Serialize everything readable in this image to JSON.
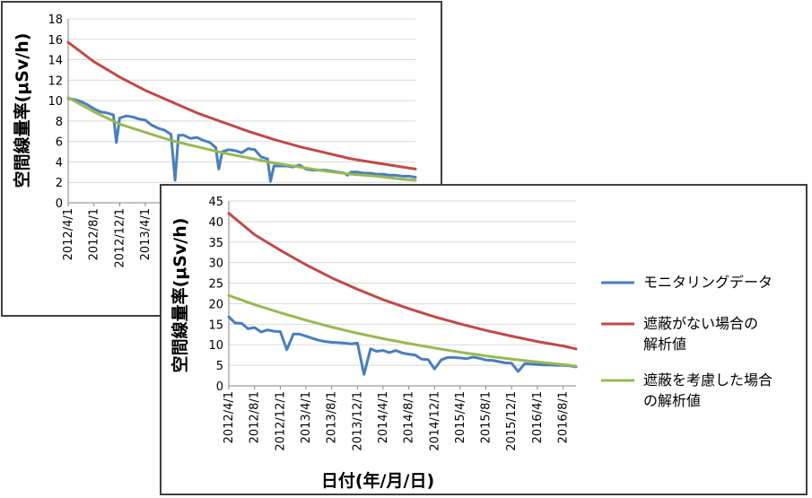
{
  "chart_data": [
    {
      "type": "line",
      "title": "",
      "ylabel": "空間線量率(μSv/h)",
      "xlabel": "",
      "ylim": [
        0,
        18
      ],
      "yticks": [
        0,
        2,
        4,
        6,
        8,
        10,
        12,
        14,
        16,
        18
      ],
      "x_ticks": [
        "2012/4/1",
        "2012/8/1",
        "2012/12/1",
        "2013/4/1"
      ],
      "grid": "horizontal",
      "legend": "none",
      "series": [
        {
          "name": "モニタリングデータ",
          "color": "#4a7ebb",
          "x": [
            "2012/4/1",
            "2012/5/1",
            "2012/6/1",
            "2012/7/1",
            "2012/8/1",
            "2012/9/1",
            "2012/10/1",
            "2012/11/1",
            "2012/11/15",
            "2012/12/1",
            "2013/1/1",
            "2013/2/1",
            "2013/3/1",
            "2013/4/1",
            "2013/5/1",
            "2013/6/1",
            "2013/7/1",
            "2013/8/1",
            "2013/8/20",
            "2013/9/5",
            "2013/10/1",
            "2013/11/1",
            "2013/12/1",
            "2014/1/1",
            "2014/2/1",
            "2014/3/1",
            "2014/3/15",
            "2014/4/1",
            "2014/5/1",
            "2014/6/1",
            "2014/7/1",
            "2014/8/1",
            "2014/9/1",
            "2014/10/1",
            "2014/11/1",
            "2014/11/15",
            "2014/12/1",
            "2015/1/1",
            "2015/2/1",
            "2015/3/1",
            "2015/4/1",
            "2015/5/1",
            "2015/6/1",
            "2015/7/1",
            "2015/8/1",
            "2015/9/1",
            "2015/10/1",
            "2015/11/1",
            "2015/11/15",
            "2015/12/1",
            "2016/1/1",
            "2016/2/1",
            "2016/3/1",
            "2016/4/1",
            "2016/5/1",
            "2016/6/1",
            "2016/7/1",
            "2016/8/1",
            "2016/9/1",
            "2016/10/1"
          ],
          "y": [
            10.2,
            10.1,
            9.9,
            9.6,
            9.2,
            8.9,
            8.8,
            8.6,
            5.9,
            8.3,
            8.5,
            8.4,
            8.2,
            8.1,
            7.6,
            7.3,
            7.1,
            6.7,
            2.2,
            6.6,
            6.6,
            6.3,
            6.4,
            6.1,
            5.9,
            5.4,
            3.3,
            5.0,
            5.2,
            5.1,
            4.9,
            5.3,
            5.2,
            4.5,
            4.3,
            2.1,
            3.6,
            3.6,
            3.6,
            3.5,
            3.7,
            3.3,
            3.2,
            3.2,
            3.2,
            3.1,
            3.0,
            2.9,
            2.7,
            3.0,
            3.0,
            2.9,
            2.9,
            2.8,
            2.8,
            2.7,
            2.7,
            2.6,
            2.6,
            2.5
          ]
        },
        {
          "name": "遮蔽がない場合の解析値",
          "color": "#be4b48",
          "x": [
            "2012/4/1",
            "2012/8/1",
            "2012/12/1",
            "2013/4/1",
            "2013/8/1",
            "2013/12/1",
            "2014/4/1",
            "2014/8/1",
            "2014/12/1",
            "2015/4/1",
            "2015/8/1",
            "2015/12/1",
            "2016/4/1",
            "2016/8/1",
            "2016/10/1"
          ],
          "y": [
            15.7,
            13.8,
            12.3,
            11.0,
            9.9,
            8.8,
            7.9,
            7.0,
            6.2,
            5.5,
            4.9,
            4.3,
            3.9,
            3.5,
            3.3
          ]
        },
        {
          "name": "遮蔽を考慮した場合の解析値",
          "color": "#98b954",
          "x": [
            "2012/4/1",
            "2012/8/1",
            "2012/12/1",
            "2013/4/1",
            "2013/8/1",
            "2013/12/1",
            "2014/4/1",
            "2014/8/1",
            "2014/12/1",
            "2015/4/1",
            "2015/8/1",
            "2015/12/1",
            "2016/4/1",
            "2016/8/1",
            "2016/10/1"
          ],
          "y": [
            10.3,
            8.9,
            7.7,
            6.9,
            6.1,
            5.5,
            4.9,
            4.4,
            3.9,
            3.5,
            3.1,
            2.8,
            2.6,
            2.3,
            2.2
          ]
        }
      ]
    },
    {
      "type": "line",
      "title": "",
      "ylabel": "空間線量率(μSv/h)",
      "xlabel": "日付(年/月/日)",
      "ylim": [
        0,
        45
      ],
      "yticks": [
        0,
        5,
        10,
        15,
        20,
        25,
        30,
        35,
        40,
        45
      ],
      "x_ticks": [
        "2012/4/1",
        "2012/8/1",
        "2012/12/1",
        "2013/4/1",
        "2013/8/1",
        "2013/12/1",
        "2014/4/1",
        "2014/8/1",
        "2014/12/1",
        "2015/4/1",
        "2015/8/1",
        "2015/12/1",
        "2016/4/1",
        "2016/8/1"
      ],
      "grid": "horizontal",
      "legend": "right",
      "series": [
        {
          "name": "モニタリングデータ",
          "color": "#4a7ebb",
          "x": [
            "2012/4/1",
            "2012/5/1",
            "2012/6/1",
            "2012/7/1",
            "2012/8/1",
            "2012/9/1",
            "2012/10/1",
            "2012/11/1",
            "2012/12/1",
            "2013/1/1",
            "2013/2/1",
            "2013/3/1",
            "2013/4/1",
            "2013/5/1",
            "2013/6/1",
            "2013/7/1",
            "2013/8/1",
            "2013/9/1",
            "2013/10/1",
            "2013/11/1",
            "2013/12/1",
            "2014/1/1",
            "2014/2/1",
            "2014/3/1",
            "2014/4/1",
            "2014/5/1",
            "2014/6/1",
            "2014/7/1",
            "2014/8/1",
            "2014/9/1",
            "2014/10/1",
            "2014/11/1",
            "2014/12/1",
            "2015/1/1",
            "2015/2/1",
            "2015/3/1",
            "2015/4/1",
            "2015/5/1",
            "2015/6/1",
            "2015/7/1",
            "2015/8/1",
            "2015/9/1",
            "2015/10/1",
            "2015/11/1",
            "2015/12/1",
            "2016/1/1",
            "2016/2/1",
            "2016/3/1",
            "2016/4/1",
            "2016/5/1",
            "2016/6/1",
            "2016/7/1",
            "2016/8/1",
            "2016/9/1",
            "2016/10/1"
          ],
          "y": [
            16.8,
            15.3,
            15.2,
            13.9,
            14.2,
            13.1,
            13.6,
            13.3,
            13.2,
            8.8,
            12.6,
            12.6,
            12.1,
            11.6,
            11.1,
            10.8,
            10.6,
            10.5,
            10.4,
            10.2,
            10.4,
            2.8,
            9.0,
            8.4,
            8.6,
            8.1,
            8.6,
            8.0,
            7.7,
            7.5,
            6.5,
            6.4,
            4.1,
            6.3,
            6.9,
            6.9,
            6.8,
            6.6,
            7.0,
            6.7,
            6.3,
            6.2,
            5.9,
            5.6,
            5.5,
            3.5,
            5.4,
            5.3,
            5.2,
            5.1,
            5.1,
            5.0,
            5.0,
            4.9,
            4.6
          ]
        },
        {
          "name": "遮蔽がない場合の解析値",
          "color": "#be4b48",
          "x": [
            "2012/4/1",
            "2012/8/1",
            "2012/12/1",
            "2013/4/1",
            "2013/8/1",
            "2013/12/1",
            "2014/4/1",
            "2014/8/1",
            "2014/12/1",
            "2015/4/1",
            "2015/8/1",
            "2015/12/1",
            "2016/4/1",
            "2016/8/1",
            "2016/10/1"
          ],
          "y": [
            42.0,
            36.8,
            33.0,
            29.5,
            26.3,
            23.5,
            21.0,
            18.8,
            16.8,
            15.1,
            13.5,
            12.1,
            10.8,
            9.7,
            9.0
          ]
        },
        {
          "name": "遮蔽を考慮した場合の解析値",
          "color": "#98b954",
          "x": [
            "2012/4/1",
            "2012/8/1",
            "2012/12/1",
            "2013/4/1",
            "2013/8/1",
            "2013/12/1",
            "2014/4/1",
            "2014/8/1",
            "2014/12/1",
            "2015/4/1",
            "2015/8/1",
            "2015/12/1",
            "2016/4/1",
            "2016/8/1",
            "2016/10/1"
          ],
          "y": [
            22.0,
            19.8,
            17.8,
            16.0,
            14.3,
            12.8,
            11.5,
            10.3,
            9.2,
            8.2,
            7.3,
            6.5,
            5.8,
            5.2,
            4.8
          ]
        }
      ],
      "legend_entries": [
        {
          "lines": [
            "モニタリングデータ"
          ],
          "color": "#4a7ebb"
        },
        {
          "lines": [
            "遮蔽がない場合の",
            "解析値"
          ],
          "color": "#be4b48"
        },
        {
          "lines": [
            "遮蔽を考慮した場合",
            "の解析値"
          ],
          "color": "#98b954"
        }
      ]
    }
  ]
}
